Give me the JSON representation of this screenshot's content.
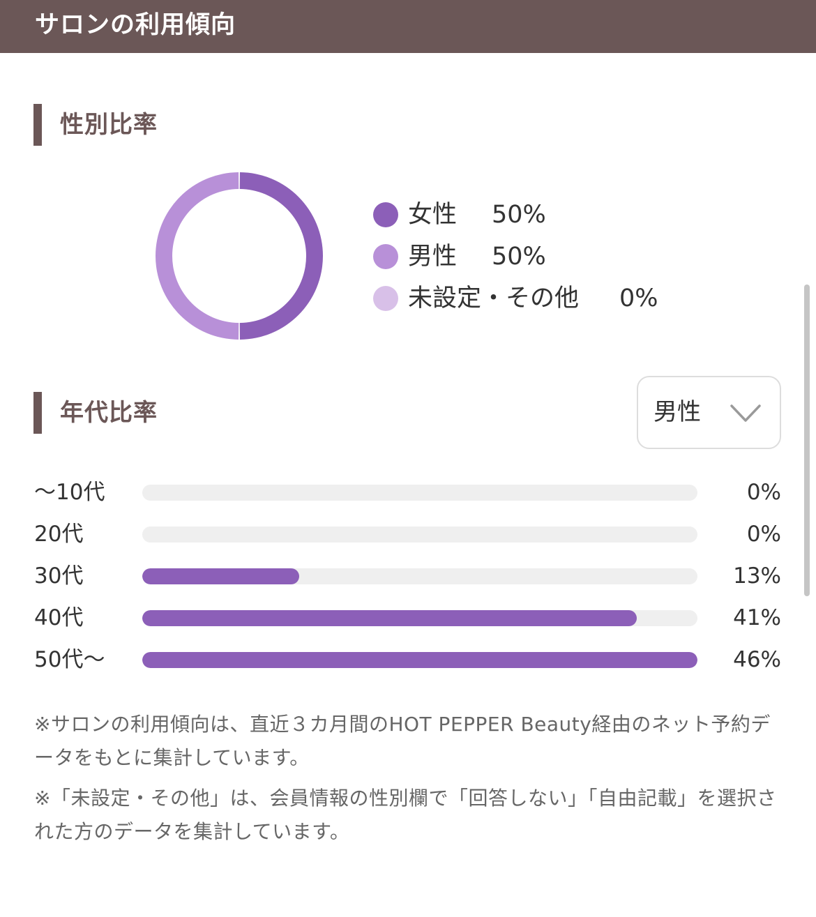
{
  "header": {
    "title": "サロンの利用傾向"
  },
  "gender_section": {
    "title": "性別比率",
    "items": [
      {
        "label": "女性",
        "value": "50%",
        "percent": 50,
        "color": "#8c5fb8"
      },
      {
        "label": "男性",
        "value": "50%",
        "percent": 50,
        "color": "#b890d8"
      },
      {
        "label": "未設定・その他",
        "value": "0%",
        "percent": 0,
        "color": "#d8c0e8"
      }
    ]
  },
  "age_section": {
    "title": "年代比率",
    "dropdown": {
      "selected": "男性",
      "icon": "chevron-down-icon"
    },
    "rows": [
      {
        "label": "〜10代",
        "value": "0%",
        "percent": 0
      },
      {
        "label": "20代",
        "value": "0%",
        "percent": 0
      },
      {
        "label": "30代",
        "value": "13%",
        "percent": 13
      },
      {
        "label": "40代",
        "value": "41%",
        "percent": 41
      },
      {
        "label": "50代〜",
        "value": "46%",
        "percent": 46
      }
    ],
    "bar_color": "#8c5fb8",
    "scale_max_percent": 46
  },
  "notes": [
    "※サロンの利用傾向は、直近３カ月間のHOT PEPPER Beauty経由のネット予約データをもとに集計しています。",
    "※「未設定・その他」は、会員情報の性別欄で「回答しない」「自由記載」を選択された方のデータを集計しています。"
  ],
  "colors": {
    "header_bg": "#6b5757",
    "accent": "#6b5757",
    "track": "#efefef"
  }
}
